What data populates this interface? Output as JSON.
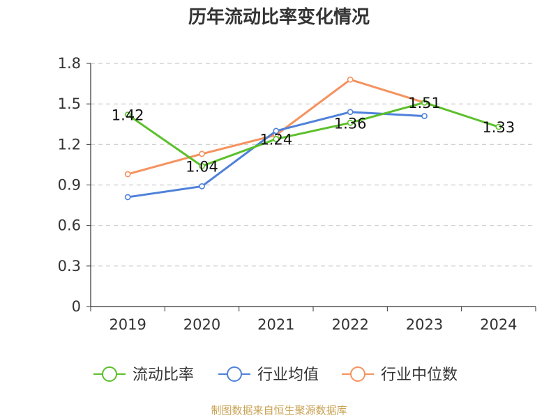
{
  "colors": {
    "current_ratio": "#5bc02a",
    "industry_avg": "#4f81d9",
    "industry_median": "#f5925f",
    "axis": "#333333",
    "grid": "#cccccc",
    "source": "#c8a253"
  },
  "chart_data": {
    "type": "line",
    "title": "历年流动比率变化情况",
    "categories": [
      "2019",
      "2020",
      "2021",
      "2022",
      "2023",
      "2024"
    ],
    "ylim": [
      0,
      1.8
    ],
    "yticks": [
      "0",
      "0.3",
      "0.6",
      "0.9",
      "1.2",
      "1.5",
      "1.8"
    ],
    "ytick_values": [
      0,
      0.3,
      0.6,
      0.9,
      1.2,
      1.5,
      1.8
    ],
    "grid": true,
    "legend_position": "bottom",
    "series": [
      {
        "name": "流动比率",
        "key": "current_ratio",
        "values": [
          1.42,
          1.04,
          1.24,
          1.36,
          1.51,
          1.33
        ],
        "labels": [
          "1.42",
          "1.04",
          "1.24",
          "1.36",
          "1.51",
          "1.33"
        ]
      },
      {
        "name": "行业均值",
        "key": "industry_avg",
        "values": [
          0.81,
          0.89,
          1.3,
          1.44,
          1.41,
          null
        ]
      },
      {
        "name": "行业中位数",
        "key": "industry_median",
        "values": [
          0.98,
          1.13,
          1.27,
          1.68,
          1.51,
          null
        ]
      }
    ]
  },
  "source_text": "制图数据来自恒生聚源数据库"
}
